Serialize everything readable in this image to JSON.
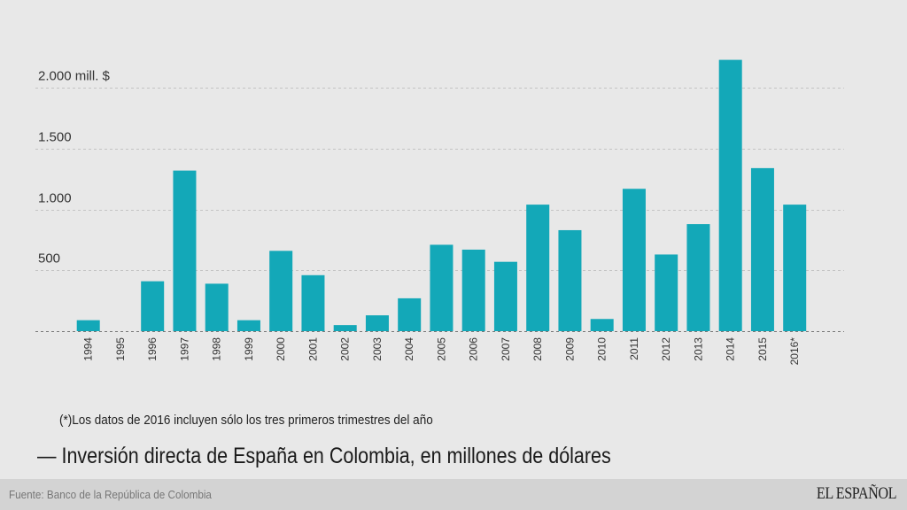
{
  "chart_data": {
    "type": "bar",
    "title": "Inversión directa de España en Colombia, en millones de dólares",
    "title_prefix": "—",
    "note": "(*)Los datos de 2016 incluyen sólo los tres primeros trimestres del año",
    "xlabel": "",
    "ylabel": "",
    "ylim": [
      0,
      2250
    ],
    "grid": true,
    "yticks": [
      {
        "value": 500,
        "label": "500"
      },
      {
        "value": 1000,
        "label": "1.000"
      },
      {
        "value": 1500,
        "label": "1.500"
      },
      {
        "value": 2000,
        "label": "2.000 mill. $"
      }
    ],
    "categories": [
      "1994",
      "1995",
      "1996",
      "1997",
      "1998",
      "1999",
      "2000",
      "2001",
      "2002",
      "2003",
      "2004",
      "2005",
      "2006",
      "2007",
      "2008",
      "2009",
      "2010",
      "2011",
      "2012",
      "2013",
      "2014",
      "2015",
      "2016*"
    ],
    "values": [
      90,
      0,
      410,
      1320,
      390,
      90,
      660,
      460,
      50,
      130,
      270,
      710,
      670,
      570,
      1040,
      830,
      100,
      1170,
      630,
      880,
      2230,
      1340,
      1040
    ],
    "bar_color": "#13a8b8"
  },
  "footer": {
    "source": "Fuente: Banco de la República de Colombia",
    "logo": "EL ESPAÑOL"
  }
}
